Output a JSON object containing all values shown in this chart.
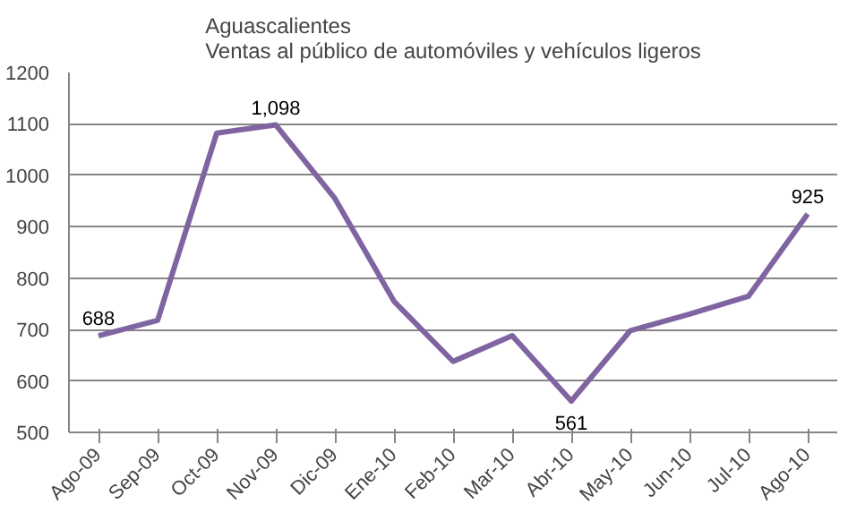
{
  "chart_data": {
    "type": "line",
    "title": "Aguascalientes\nVentas al público de automóviles y vehículos ligeros",
    "categories": [
      "Ago-09",
      "Sep-09",
      "Oct-09",
      "Nov-09",
      "Dic-09",
      "Ene-10",
      "Feb-10",
      "Mar-10",
      "Abr-10",
      "May-10",
      "Jun-10",
      "Jul-10",
      "Ago-10"
    ],
    "series": [
      {
        "color": "#8064a2",
        "values": [
          688,
          718,
          1082,
          1098,
          955,
          755,
          638,
          688,
          561,
          698,
          730,
          765,
          925
        ],
        "value_labels": [
          "688",
          null,
          null,
          "1,098",
          null,
          null,
          null,
          null,
          "561",
          null,
          null,
          null,
          "925"
        ]
      }
    ],
    "ylim": [
      500,
      1200
    ],
    "yticks": [
      500,
      600,
      700,
      800,
      900,
      1000,
      1100,
      1200
    ],
    "grid": "y",
    "marker": "none",
    "line_style": "solid"
  }
}
